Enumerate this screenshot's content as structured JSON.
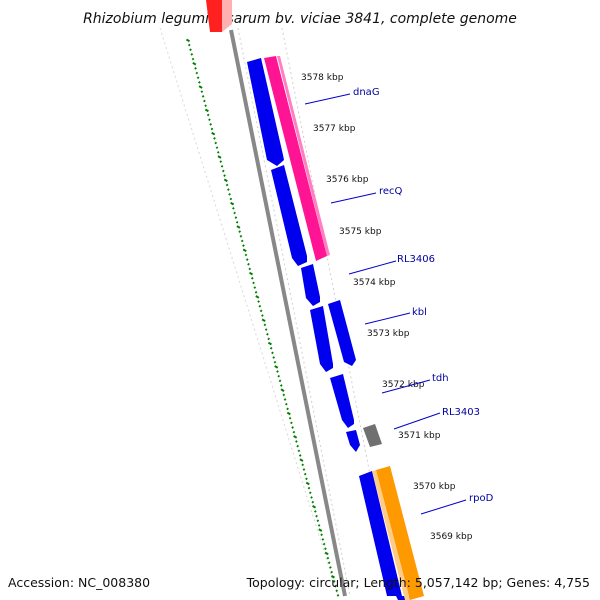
{
  "title": "Rhizobium leguminosarum bv. viciae 3841, complete genome",
  "footer": {
    "accession": "Accession: NC_008380",
    "topology": "Topology: circular; Length: 5,057,142 bp; Genes: 4,755"
  },
  "scale_labels": [
    "3578 kbp",
    "3577 kbp",
    "3576 kbp",
    "3575 kbp",
    "3574 kbp",
    "3573 kbp",
    "3572 kbp",
    "3571 kbp",
    "3570 kbp",
    "3569 kbp"
  ],
  "genes": [
    "dnaG",
    "recQ",
    "RL3406",
    "kbl",
    "tdh",
    "RL3403",
    "rpoD"
  ],
  "colors": {
    "forward_cds": "#0000ee",
    "highlight_pink": "#ff1493",
    "highlight_orange": "#ff9900",
    "grey_feature": "#808080",
    "backbone": "#888888",
    "gc_ticks": "#008000",
    "label_line": "#0000cc",
    "top_red": "#ff2020"
  }
}
